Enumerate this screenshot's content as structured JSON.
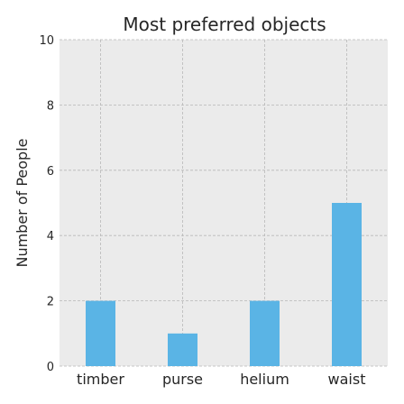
{
  "chart_data": {
    "type": "bar",
    "title": "Most preferred objects",
    "xlabel": "",
    "ylabel": "Number of People",
    "categories": [
      "timber",
      "purse",
      "helium",
      "waist"
    ],
    "values": [
      2,
      1,
      2,
      5
    ],
    "ylim": [
      0,
      10
    ],
    "yticks": [
      0,
      2,
      4,
      6,
      8,
      10
    ],
    "grid": true,
    "bar_color": "#5ab4e5",
    "plot_background": "#ebebeb"
  }
}
